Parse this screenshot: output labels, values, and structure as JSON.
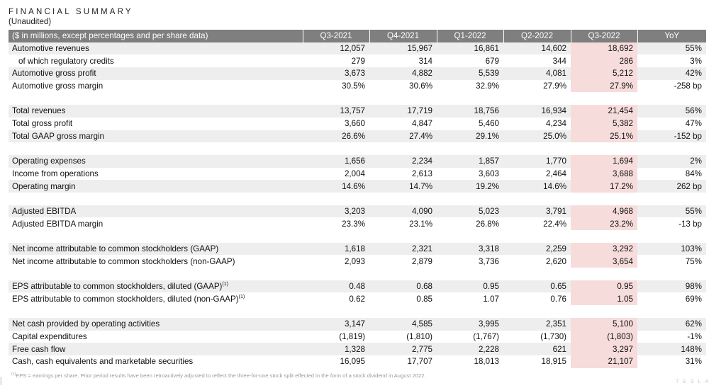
{
  "header": {
    "title": "FINANCIAL SUMMARY",
    "subtitle": "(Unaudited)"
  },
  "table": {
    "header_label": "($ in millions, except percentages and per share data)",
    "columns": [
      "Q3-2021",
      "Q4-2021",
      "Q1-2022",
      "Q2-2022",
      "Q3-2022",
      "YoY"
    ],
    "groups": [
      [
        {
          "label": "Automotive revenues",
          "values": [
            "12,057",
            "15,967",
            "16,861",
            "14,602",
            "18,692",
            "55%"
          ]
        },
        {
          "label": "of which regulatory credits",
          "indent": true,
          "values": [
            "279",
            "314",
            "679",
            "344",
            "286",
            "3%"
          ]
        },
        {
          "label": "Automotive gross profit",
          "values": [
            "3,673",
            "4,882",
            "5,539",
            "4,081",
            "5,212",
            "42%"
          ]
        },
        {
          "label": "Automotive gross margin",
          "values": [
            "30.5%",
            "30.6%",
            "32.9%",
            "27.9%",
            "27.9%",
            "-258 bp"
          ]
        }
      ],
      [
        {
          "label": "Total revenues",
          "values": [
            "13,757",
            "17,719",
            "18,756",
            "16,934",
            "21,454",
            "56%"
          ]
        },
        {
          "label": "Total gross profit",
          "values": [
            "3,660",
            "4,847",
            "5,460",
            "4,234",
            "5,382",
            "47%"
          ]
        },
        {
          "label": "Total GAAP gross margin",
          "values": [
            "26.6%",
            "27.4%",
            "29.1%",
            "25.0%",
            "25.1%",
            "-152 bp"
          ]
        }
      ],
      [
        {
          "label": "Operating expenses",
          "values": [
            "1,656",
            "2,234",
            "1,857",
            "1,770",
            "1,694",
            "2%"
          ]
        },
        {
          "label": "Income from operations",
          "values": [
            "2,004",
            "2,613",
            "3,603",
            "2,464",
            "3,688",
            "84%"
          ]
        },
        {
          "label": "Operating margin",
          "values": [
            "14.6%",
            "14.7%",
            "19.2%",
            "14.6%",
            "17.2%",
            "262 bp"
          ]
        }
      ],
      [
        {
          "label": "Adjusted EBITDA",
          "values": [
            "3,203",
            "4,090",
            "5,023",
            "3,791",
            "4,968",
            "55%"
          ]
        },
        {
          "label": "Adjusted EBITDA margin",
          "values": [
            "23.3%",
            "23.1%",
            "26.8%",
            "22.4%",
            "23.2%",
            "-13 bp"
          ]
        }
      ],
      [
        {
          "label": "Net income attributable to common stockholders (GAAP)",
          "values": [
            "1,618",
            "2,321",
            "3,318",
            "2,259",
            "3,292",
            "103%"
          ]
        },
        {
          "label": "Net income attributable to common stockholders (non-GAAP)",
          "values": [
            "2,093",
            "2,879",
            "3,736",
            "2,620",
            "3,654",
            "75%"
          ]
        }
      ],
      [
        {
          "label": "EPS attributable to common stockholders, diluted (GAAP)",
          "sup": "(1)",
          "values": [
            "0.48",
            "0.68",
            "0.95",
            "0.65",
            "0.95",
            "98%"
          ]
        },
        {
          "label": "EPS attributable to common stockholders, diluted (non-GAAP)",
          "sup": "(1)",
          "values": [
            "0.62",
            "0.85",
            "1.07",
            "0.76",
            "1.05",
            "69%"
          ]
        }
      ],
      [
        {
          "label": "Net cash provided by operating activities",
          "values": [
            "3,147",
            "4,585",
            "3,995",
            "2,351",
            "5,100",
            "62%"
          ]
        },
        {
          "label": "Capital expenditures",
          "values": [
            "(1,819)",
            "(1,810)",
            "(1,767)",
            "(1,730)",
            "(1,803)",
            "-1%"
          ]
        },
        {
          "label": "Free cash flow",
          "values": [
            "1,328",
            "2,775",
            "2,228",
            "621",
            "3,297",
            "148%"
          ]
        },
        {
          "label": "Cash, cash equivalents and marketable securities",
          "values": [
            "16,095",
            "17,707",
            "18,013",
            "18,915",
            "21,107",
            "31%"
          ]
        }
      ]
    ]
  },
  "footnote": {
    "marker": "(1)",
    "text": "EPS = earnings per share. Prior period results have been retroactively adjusted to reflect the three-for-one stock split effected in the form of a stock dividend in August 2022."
  },
  "logo_text": "TESLA",
  "colors": {
    "header_bg": "#7f7f7f",
    "row_shade": "#eeeeee",
    "highlight": "#f7dcdc"
  }
}
